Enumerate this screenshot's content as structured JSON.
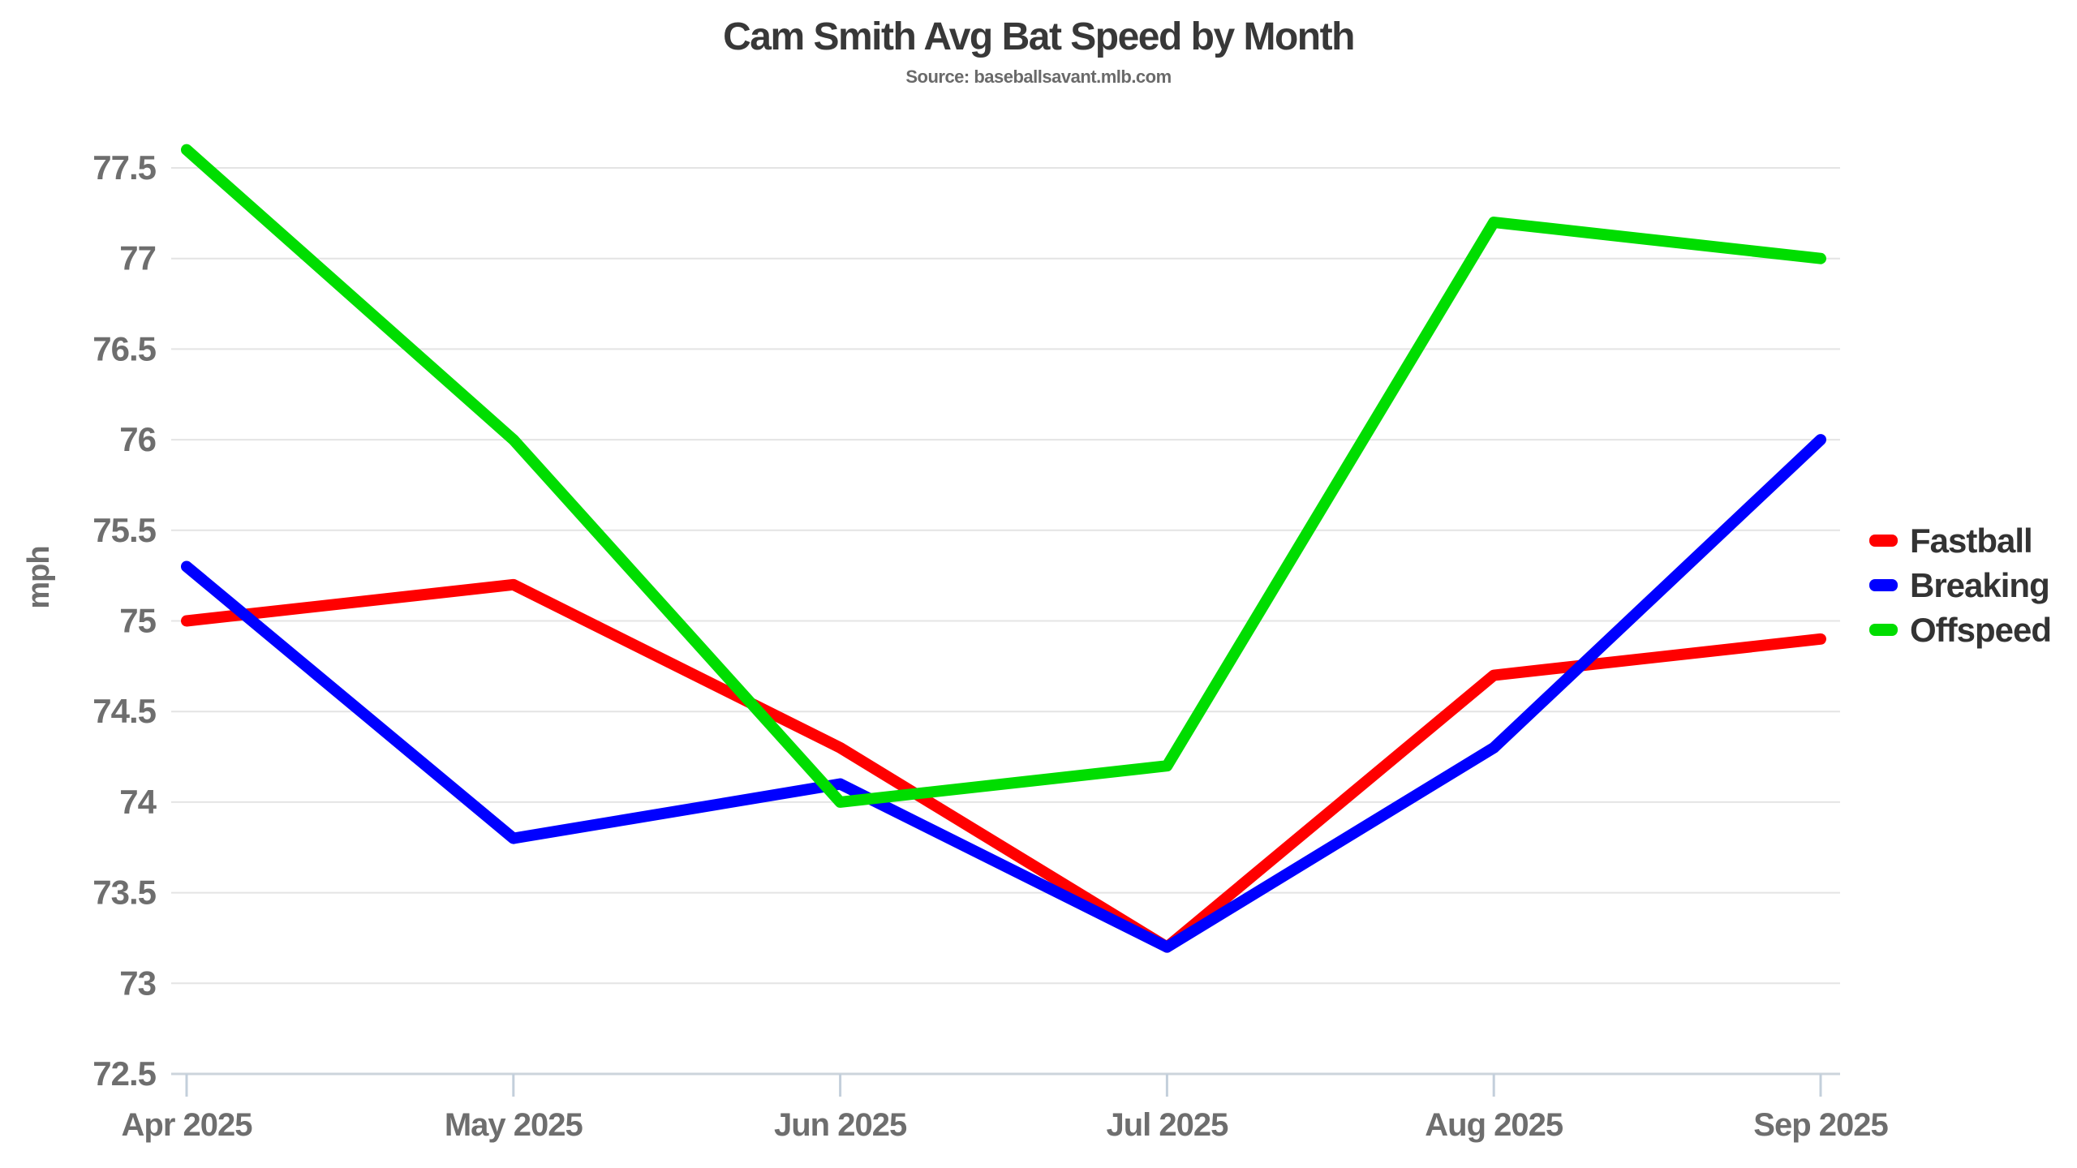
{
  "chart_data": {
    "type": "line",
    "title": "Cam Smith Avg Bat Speed by Month",
    "subtitle": "Source: baseballsavant.mlb.com",
    "ylabel": "mph",
    "xlabel": "",
    "categories": [
      "Apr 2025",
      "May 2025",
      "Jun 2025",
      "Jul 2025",
      "Aug 2025",
      "Sep 2025"
    ],
    "series": [
      {
        "name": "Fastball",
        "color": "#ff0000",
        "values": [
          75.0,
          75.2,
          74.3,
          73.2,
          74.7,
          74.9
        ]
      },
      {
        "name": "Breaking",
        "color": "#0000ff",
        "values": [
          75.3,
          73.8,
          74.1,
          73.2,
          74.3,
          76.0
        ]
      },
      {
        "name": "Offspeed",
        "color": "#00dd00",
        "values": [
          77.6,
          76.0,
          74.0,
          74.2,
          77.2,
          77.0
        ]
      }
    ],
    "ylim": [
      72.5,
      77.5
    ],
    "ytick_step": 0.5,
    "ytick_labels": [
      "72.5",
      "73",
      "73.5",
      "74",
      "74.5",
      "75",
      "75.5",
      "76",
      "76.5",
      "77",
      "77.5"
    ],
    "grid": "horizontal",
    "legend_position": "right"
  },
  "colors": {
    "background": "#ffffff",
    "grid": "#e4e4e4",
    "axis_line": "#ccd4dc",
    "tick_mark": "#c3cfdb",
    "tick_label": "#6e6e6e",
    "title": "#383838",
    "subtitle": "#6a6a6a",
    "legend_text": "#333333"
  }
}
